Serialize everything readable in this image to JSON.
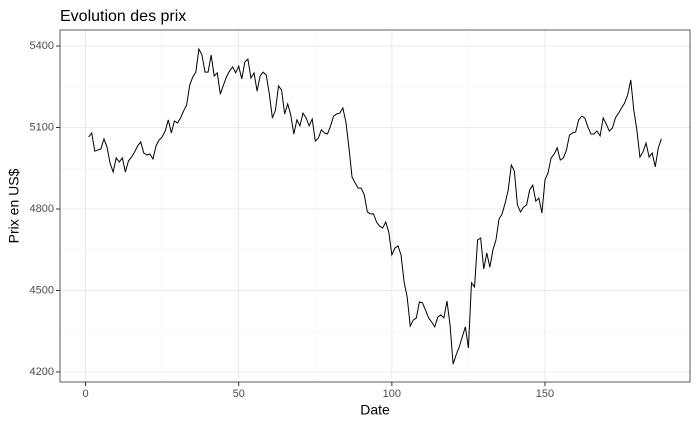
{
  "chart_data": {
    "type": "line",
    "title": "Evolution des prix",
    "x_label": "Date",
    "y_label": "Prix en US$",
    "x": [
      1,
      2,
      3,
      4,
      5,
      6,
      7,
      8,
      9,
      10,
      11,
      12,
      13,
      14,
      15,
      16,
      17,
      18,
      19,
      20,
      21,
      22,
      23,
      24,
      25,
      26,
      27,
      28,
      29,
      30,
      31,
      32,
      33,
      34,
      35,
      36,
      37,
      38,
      39,
      40,
      41,
      42,
      43,
      44,
      45,
      46,
      47,
      48,
      49,
      50,
      51,
      52,
      53,
      54,
      55,
      56,
      57,
      58,
      59,
      60,
      61,
      62,
      63,
      64,
      65,
      66,
      67,
      68,
      69,
      70,
      71,
      72,
      73,
      74,
      75,
      76,
      77,
      78,
      79,
      80,
      81,
      82,
      83,
      84,
      85,
      86,
      87,
      88,
      89,
      90,
      91,
      92,
      93,
      94,
      95,
      96,
      97,
      98,
      99,
      100,
      101,
      102,
      103,
      104,
      105,
      106,
      107,
      108,
      109,
      110,
      111,
      112,
      113,
      114,
      115,
      116,
      117,
      118,
      119,
      120,
      121,
      122,
      123,
      124,
      125,
      126,
      127,
      128,
      129,
      130,
      131,
      132,
      133,
      134,
      135,
      136,
      137,
      138,
      139,
      140,
      141,
      142,
      143,
      144,
      145,
      146,
      147,
      148,
      149,
      150,
      151,
      152,
      153,
      154,
      155,
      156,
      157,
      158,
      159,
      160,
      161,
      162,
      163,
      164,
      165,
      166,
      167,
      168,
      169,
      170,
      171,
      172,
      173,
      174,
      175,
      176,
      177,
      178,
      179,
      180,
      181,
      182,
      183,
      184,
      185,
      186,
      187,
      188
    ],
    "values": [
      5065,
      5080,
      5013,
      5017,
      5021,
      5058,
      5028,
      4969,
      4936,
      4988,
      4973,
      4988,
      4936,
      4977,
      4991,
      5010,
      5032,
      5047,
      5006,
      4999,
      5002,
      4984,
      5032,
      5054,
      5065,
      5087,
      5128,
      5080,
      5124,
      5117,
      5135,
      5161,
      5183,
      5256,
      5286,
      5304,
      5389,
      5367,
      5304,
      5304,
      5367,
      5290,
      5301,
      5223,
      5256,
      5286,
      5308,
      5323,
      5301,
      5326,
      5279,
      5341,
      5352,
      5282,
      5301,
      5234,
      5290,
      5304,
      5293,
      5223,
      5135,
      5164,
      5253,
      5238,
      5150,
      5187,
      5146,
      5076,
      5128,
      5106,
      5153,
      5135,
      5106,
      5131,
      5050,
      5061,
      5091,
      5080,
      5076,
      5106,
      5142,
      5150,
      5153,
      5172,
      5120,
      5025,
      4918,
      4896,
      4877,
      4877,
      4852,
      4789,
      4782,
      4782,
      4752,
      4737,
      4730,
      4752,
      4715,
      4631,
      4656,
      4664,
      4631,
      4531,
      4476,
      4369,
      4391,
      4399,
      4458,
      4454,
      4428,
      4399,
      4384,
      4366,
      4402,
      4410,
      4399,
      4461,
      4373,
      4229,
      4263,
      4292,
      4329,
      4366,
      4288,
      4528,
      4513,
      4686,
      4693,
      4579,
      4638,
      4586,
      4649,
      4686,
      4763,
      4782,
      4822,
      4870,
      4962,
      4940,
      4815,
      4789,
      4807,
      4815,
      4870,
      4888,
      4829,
      4840,
      4785,
      4907,
      4933,
      4988,
      5002,
      5025,
      4980,
      4988,
      5017,
      5072,
      5080,
      5083,
      5128,
      5142,
      5135,
      5102,
      5076,
      5076,
      5087,
      5069,
      5135,
      5113,
      5087,
      5098,
      5135,
      5153,
      5172,
      5190,
      5220,
      5275,
      5164,
      5091,
      4991,
      5010,
      5043,
      4991,
      5006,
      4955,
      5025,
      5058
    ],
    "color": "#000000",
    "xlim": [
      -8.35,
      197.35
    ],
    "xticks": [
      0,
      50,
      100,
      150
    ],
    "ylim": [
      4163,
      5459
    ],
    "yticks": [
      4200,
      4500,
      4800,
      5100,
      5400
    ],
    "grid": true,
    "minor_grid": true
  }
}
